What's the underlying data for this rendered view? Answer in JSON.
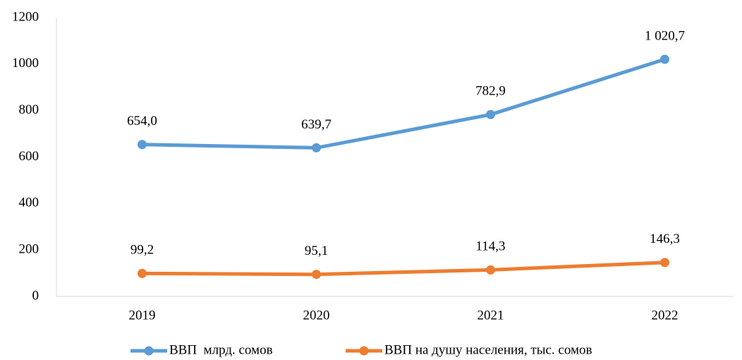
{
  "chart_data": {
    "type": "line",
    "categories": [
      "2019",
      "2020",
      "2021",
      "2022"
    ],
    "series": [
      {
        "name": "ВВП  млрд. сомов",
        "color": "#5b9bd5",
        "values": [
          654.0,
          639.7,
          782.9,
          1020.7
        ],
        "value_labels": [
          "654,0",
          "639,7",
          "782,9",
          "1 020,7"
        ]
      },
      {
        "name": "ВВП на душу населения, тыс. сомов",
        "color": "#ed7d31",
        "values": [
          99.2,
          95.1,
          114.3,
          146.3
        ],
        "value_labels": [
          "99,2",
          "95,1",
          "114,3",
          "146,3"
        ]
      }
    ],
    "ylim": [
      0,
      1200
    ],
    "yticks": [
      0,
      200,
      400,
      600,
      800,
      1000,
      1200
    ],
    "grid": false,
    "legend": "bottom"
  }
}
